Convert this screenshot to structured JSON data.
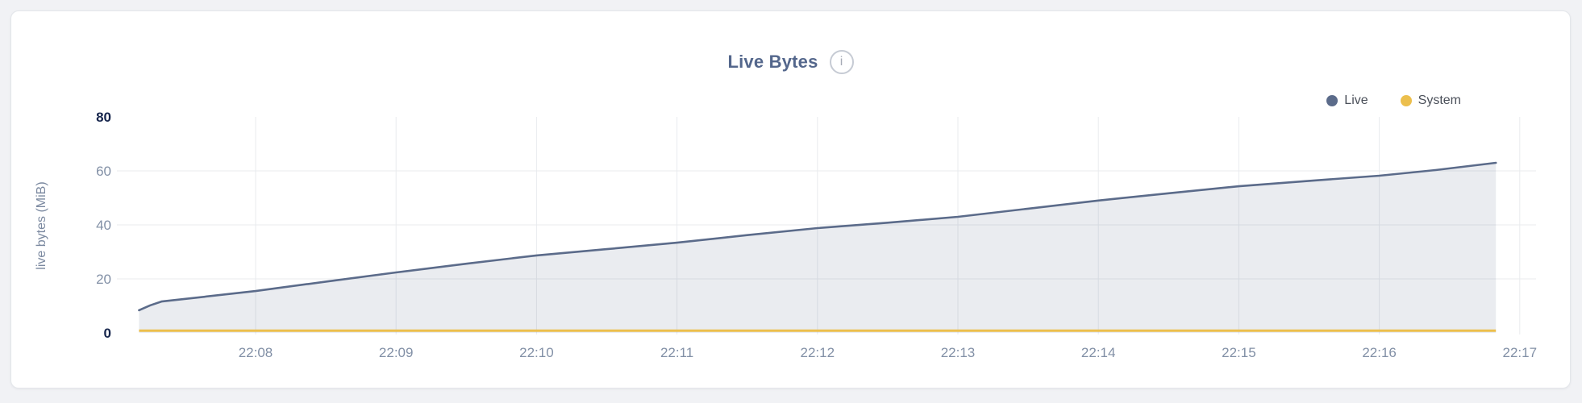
{
  "card": {
    "title": "Live Bytes",
    "info_icon": "i"
  },
  "legend": {
    "items": [
      {
        "label": "Live",
        "color": "#5b6b8a"
      },
      {
        "label": "System",
        "color": "#ecbf4d"
      }
    ]
  },
  "colors": {
    "live_line": "#5b6b8a",
    "live_fill": "rgba(91,107,138,0.13)",
    "system_line": "#ecbf4d",
    "grid": "#e9ebee",
    "title_text": "#54678c",
    "edge_tick_text": "#16254c",
    "tick_text": "#8290a6"
  },
  "chart_data": {
    "type": "area",
    "title": "Live Bytes",
    "xlabel": "",
    "ylabel": "live bytes (MiB)",
    "ylim": [
      0,
      80
    ],
    "grid": true,
    "legend_position": "top-right",
    "yticks": [
      {
        "v": 0,
        "label": "0"
      },
      {
        "v": 20,
        "label": "20"
      },
      {
        "v": 40,
        "label": "40"
      },
      {
        "v": 60,
        "label": "60"
      },
      {
        "v": 80,
        "label": "80"
      }
    ],
    "xticks": [
      {
        "t": 8,
        "label": "22:08"
      },
      {
        "t": 9,
        "label": "22:09"
      },
      {
        "t": 10,
        "label": "22:10"
      },
      {
        "t": 11,
        "label": "22:11"
      },
      {
        "t": 12,
        "label": "22:12"
      },
      {
        "t": 13,
        "label": "22:13"
      },
      {
        "t": 14,
        "label": "22:14"
      },
      {
        "t": 15,
        "label": "22:15"
      },
      {
        "t": 16,
        "label": "22:16"
      },
      {
        "t": 17,
        "label": "22:17"
      }
    ],
    "x_unit": "minutes after 22:00",
    "x_window": [
      7.01,
      17.12
    ],
    "series": [
      {
        "name": "Live",
        "color": "#5b6b8a",
        "fill": "rgba(91,107,138,0.13)",
        "points": [
          [
            7.17,
            8.4
          ],
          [
            7.25,
            10.2
          ],
          [
            7.33,
            11.6
          ],
          [
            7.5,
            12.6
          ],
          [
            8,
            15.5
          ],
          [
            8.5,
            19.0
          ],
          [
            9,
            22.4
          ],
          [
            9.5,
            25.6
          ],
          [
            10,
            28.7
          ],
          [
            10.5,
            31.0
          ],
          [
            11,
            33.4
          ],
          [
            11.5,
            36.2
          ],
          [
            12,
            38.8
          ],
          [
            12.5,
            40.8
          ],
          [
            13,
            43.0
          ],
          [
            13.5,
            46.0
          ],
          [
            14,
            49.0
          ],
          [
            14.5,
            51.7
          ],
          [
            15,
            54.3
          ],
          [
            15.5,
            56.3
          ],
          [
            16,
            58.2
          ],
          [
            16.4,
            60.3
          ],
          [
            16.83,
            63.0
          ]
        ]
      },
      {
        "name": "System",
        "color": "#ecbf4d",
        "fill": null,
        "points": [
          [
            7.17,
            0.8
          ],
          [
            16.83,
            0.8
          ]
        ]
      }
    ]
  }
}
